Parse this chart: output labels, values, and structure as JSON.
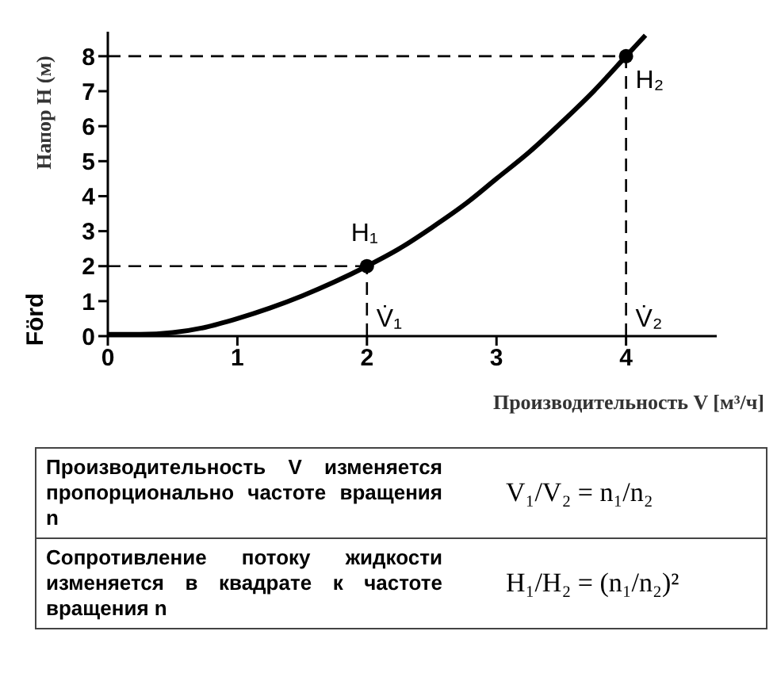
{
  "chart_data": {
    "type": "line",
    "ylabel": "Напор H (м)",
    "xlabel": "Производительность V [м³/ч]",
    "xlim": [
      0,
      4.7
    ],
    "xticks": [
      0,
      1,
      2,
      3,
      4
    ],
    "ylim": [
      0,
      8.7
    ],
    "yticks": [
      0,
      1,
      2,
      3,
      4,
      5,
      6,
      7,
      8
    ],
    "marker": "none",
    "line_style": "solid",
    "series": [
      {
        "color": "#000000",
        "x": [
          0,
          0.25,
          0.5,
          0.75,
          1,
          1.25,
          1.5,
          1.75,
          2,
          2.25,
          2.5,
          2.75,
          3,
          3.25,
          3.5,
          3.75,
          4,
          4.15
        ],
        "values": [
          0.05,
          0.05,
          0.1,
          0.25,
          0.5,
          0.8,
          1.15,
          1.55,
          2,
          2.5,
          3.1,
          3.75,
          4.5,
          5.25,
          6.1,
          7,
          8,
          8.6
        ]
      },
      {
        "type": "scatter",
        "marker": "circle",
        "color": "#000000",
        "x": [
          2,
          4
        ],
        "values": [
          2,
          8
        ]
      }
    ],
    "ref_lines": [
      {
        "axis": "x",
        "value": 2,
        "label": "V̇₁",
        "line_style": "dashed"
      },
      {
        "axis": "x",
        "value": 4,
        "label": "V̇₂",
        "line_style": "dashed"
      },
      {
        "axis": "y",
        "value": 2,
        "line_style": "dashed"
      },
      {
        "axis": "y",
        "value": 8,
        "line_style": "dashed"
      }
    ],
    "annotations": [
      {
        "text": "H₁",
        "x": 2,
        "y": 2
      },
      {
        "text": "H₂",
        "x": 4,
        "y": 8
      },
      "Förd",
      "Производительность V изменяется пропорционально частоте вращения n",
      "V₁/V₂ = n₁/n₂",
      "Сопротивление потоку жидкости изменяется в квадрате к частоте вращения n",
      "H₁/H₂ = (n₁/n₂)²"
    ]
  }
}
